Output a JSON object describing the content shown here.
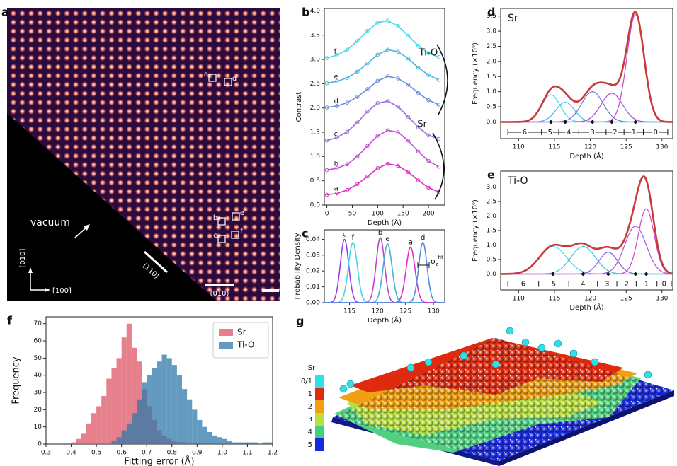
{
  "image_panel": {
    "panel": "a",
    "vacuum": "vacuum",
    "axis_y": "[010]",
    "axis_x": "[100]",
    "plane_diag": "(110)",
    "plane_horiz": "(010)",
    "site_labels": [
      "a",
      "b",
      "c",
      "d",
      "e",
      "f"
    ]
  },
  "chart_data": [
    {
      "type": "line",
      "panel": "b",
      "xlabel": "Depth (Å)",
      "ylabel": "Contrast",
      "x": [
        0,
        20,
        40,
        60,
        80,
        100,
        120,
        140,
        160,
        180,
        200,
        220
      ],
      "xlim": [
        -5,
        232
      ],
      "ylim": [
        0,
        4.05
      ],
      "xticks": [
        0,
        50,
        100,
        150,
        200
      ],
      "yticks": [
        {
          "value": 0,
          "label": "0.0"
        },
        0.5,
        {
          "value": 1,
          "label": "1.0"
        },
        1.5,
        {
          "value": 2,
          "label": "2.0"
        },
        2.5,
        {
          "value": 3,
          "label": "3.0"
        },
        3.5,
        {
          "value": 4,
          "label": "4.0"
        }
      ],
      "series": [
        {
          "name": "f",
          "color": "#3fdbe6",
          "values": [
            3.03,
            3.09,
            3.2,
            3.38,
            3.59,
            3.76,
            3.8,
            3.69,
            3.49,
            3.28,
            3.13,
            3.05
          ]
        },
        {
          "name": "e",
          "color": "#4ab4da",
          "values": [
            2.51,
            2.55,
            2.62,
            2.75,
            2.92,
            3.1,
            3.2,
            3.16,
            3.02,
            2.83,
            2.68,
            2.58
          ]
        },
        {
          "name": "d",
          "color": "#6a8ddb",
          "values": [
            2.01,
            2.04,
            2.11,
            2.23,
            2.39,
            2.56,
            2.65,
            2.61,
            2.48,
            2.31,
            2.16,
            2.07
          ]
        },
        {
          "name": "c",
          "color": "#9a6ed9",
          "values": [
            1.33,
            1.39,
            1.51,
            1.7,
            1.93,
            2.1,
            2.14,
            2.03,
            1.82,
            1.6,
            1.44,
            1.36
          ]
        },
        {
          "name": "b",
          "color": "#c04fd2",
          "values": [
            0.72,
            0.76,
            0.84,
            1.0,
            1.22,
            1.43,
            1.54,
            1.5,
            1.33,
            1.1,
            0.91,
            0.79
          ]
        },
        {
          "name": "a",
          "color": "#e22fc8",
          "values": [
            0.21,
            0.24,
            0.31,
            0.43,
            0.59,
            0.76,
            0.85,
            0.81,
            0.68,
            0.51,
            0.36,
            0.27
          ]
        }
      ],
      "annotations": [
        "Ti-O",
        "Sr"
      ]
    },
    {
      "type": "density",
      "panel": "c",
      "xlabel": "Depth (Å)",
      "ylabel": "Probability Density",
      "xlim": [
        110.5,
        132
      ],
      "ylim": [
        0,
        0.046
      ],
      "xticks": [
        115,
        120,
        125,
        130
      ],
      "yticks": [
        {
          "value": 0,
          "label": "0.00"
        },
        0.01,
        0.02,
        0.03,
        0.04
      ],
      "series": [
        {
          "name": "c",
          "color": "#9a40e0",
          "center": 114.1,
          "peak": 0.04,
          "sd": 0.75
        },
        {
          "name": "f",
          "color": "#3fd8e8",
          "center": 115.6,
          "peak": 0.038,
          "sd": 0.8
        },
        {
          "name": "b",
          "color": "#c040d0",
          "center": 120.5,
          "peak": 0.041,
          "sd": 0.75
        },
        {
          "name": "e",
          "color": "#40b0d8",
          "center": 121.8,
          "peak": 0.037,
          "sd": 0.8
        },
        {
          "name": "a",
          "color": "#d830c8",
          "center": 125.9,
          "peak": 0.035,
          "sd": 0.8
        },
        {
          "name": "d",
          "color": "#5090e0",
          "center": 128.1,
          "peak": 0.038,
          "sd": 0.75
        }
      ],
      "sigma_label": "σ",
      "sigma_sub": "z",
      "sigma_sup": "fit"
    },
    {
      "type": "decomposition",
      "panel": "d",
      "title": "Sr",
      "xlabel": "Depth (Å)",
      "ylabel": "Frequency (×10⁶)",
      "xlim": [
        107.5,
        131.5
      ],
      "ylim": [
        -0.55,
        3.75
      ],
      "xticks": [
        110,
        115,
        120,
        125,
        130
      ],
      "yticks": [
        {
          "value": 0,
          "label": "0.0"
        },
        0.5,
        {
          "value": 1,
          "label": "1.0"
        },
        1.5,
        {
          "value": 2,
          "label": "2.0"
        },
        2.5,
        {
          "value": 3,
          "label": "3.0"
        },
        3.5
      ],
      "total_color": "#c83a3a",
      "components": [
        {
          "color": "#40d8e0",
          "center": 114.5,
          "peak": 0.9,
          "sd": 1.3
        },
        {
          "color": "#40bce0",
          "center": 116.5,
          "peak": 0.65,
          "sd": 1.3
        },
        {
          "color": "#6a70d8",
          "center": 120.3,
          "peak": 1.0,
          "sd": 1.5
        },
        {
          "color": "#a050d8",
          "center": 123.0,
          "peak": 0.95,
          "sd": 1.5
        },
        {
          "color": "#d040d0",
          "center": 126.3,
          "peak": 3.55,
          "sd": 1.2
        }
      ],
      "layers": [
        "6",
        "5",
        "4",
        "3",
        "2",
        "1",
        "0"
      ],
      "layer_bounds": [
        108.5,
        113.2,
        115.6,
        118.4,
        122.2,
        124.7,
        127.4,
        130.8
      ]
    },
    {
      "type": "decomposition",
      "panel": "e",
      "title": "Ti-O",
      "xlabel": "Depth (Å)",
      "ylabel": "Frequency (×10⁶)",
      "xlim": [
        107.5,
        131.5
      ],
      "ylim": [
        -0.55,
        3.55
      ],
      "xticks": [
        110,
        115,
        120,
        125,
        130
      ],
      "yticks": [
        {
          "value": 0,
          "label": "0.0"
        },
        0.5,
        {
          "value": 1,
          "label": "1.0"
        },
        1.5,
        {
          "value": 2,
          "label": "2.0"
        },
        2.5,
        {
          "value": 3,
          "label": "3.0"
        }
      ],
      "total_color": "#c83a3a",
      "components": [
        {
          "color": "#40d8e0",
          "center": 114.8,
          "peak": 0.95,
          "sd": 1.9
        },
        {
          "color": "#40bce0",
          "center": 119.0,
          "peak": 0.95,
          "sd": 1.7
        },
        {
          "color": "#8060d8",
          "center": 122.5,
          "peak": 0.75,
          "sd": 1.3
        },
        {
          "color": "#b050d8",
          "center": 126.3,
          "peak": 1.65,
          "sd": 1.5
        },
        {
          "color": "#d040d0",
          "center": 127.8,
          "peak": 2.25,
          "sd": 1.1
        }
      ],
      "layers": [
        "6",
        "5",
        "4",
        "3",
        "2",
        "1",
        "0"
      ],
      "layer_bounds": [
        108.5,
        112.8,
        117.0,
        121.0,
        123.7,
        126.4,
        129.3,
        131.3
      ]
    },
    {
      "type": "histogram",
      "panel": "f",
      "xlabel": "Fitting error (Å)",
      "ylabel": "Frequency",
      "xlim": [
        0.3,
        1.2
      ],
      "ylim": [
        0,
        74
      ],
      "xticks": [
        0.3,
        0.4,
        0.5,
        0.6,
        0.7,
        0.8,
        0.9,
        {
          "value": 1,
          "label": "1.0"
        },
        1.1,
        1.2
      ],
      "yticks": [
        0,
        10,
        20,
        30,
        40,
        50,
        60,
        70
      ],
      "legend": "upper right",
      "series": [
        {
          "name": "Sr",
          "color": "#dd5665",
          "bins": [
            0.4,
            0.42,
            0.44,
            0.46,
            0.48,
            0.5,
            0.52,
            0.54,
            0.56,
            0.58,
            0.6,
            0.62,
            0.64,
            0.66,
            0.68,
            0.7,
            0.72,
            0.74,
            0.76,
            0.78,
            0.8,
            0.82,
            0.84,
            0.86
          ],
          "values": [
            1,
            3,
            6,
            12,
            18,
            22,
            28,
            38,
            44,
            50,
            62,
            70,
            56,
            48,
            32,
            22,
            14,
            8,
            5,
            3,
            2,
            1,
            1
          ]
        },
        {
          "name": "Ti-O",
          "color": "#2f78aa",
          "bins": [
            0.56,
            0.58,
            0.6,
            0.62,
            0.64,
            0.66,
            0.68,
            0.7,
            0.72,
            0.74,
            0.76,
            0.78,
            0.8,
            0.82,
            0.84,
            0.86,
            0.88,
            0.9,
            0.92,
            0.94,
            0.96,
            0.98,
            1.0,
            1.02,
            1.04,
            1.06,
            1.08,
            1.1,
            1.12,
            1.14,
            1.16,
            1.18,
            1.2
          ],
          "values": [
            2,
            4,
            8,
            12,
            18,
            26,
            36,
            40,
            44,
            48,
            52,
            50,
            46,
            40,
            32,
            26,
            20,
            14,
            10,
            7,
            5,
            4,
            3,
            2,
            1,
            1,
            1,
            1,
            1,
            0,
            1,
            1
          ]
        }
      ]
    }
  ],
  "model_panel": {
    "panel": "g",
    "colorbar_title": "Sr",
    "levels": [
      "0/1",
      "1",
      "2",
      "3",
      "4",
      "5"
    ],
    "colors": [
      "#30e0e8",
      "#e02a10",
      "#f0a010",
      "#b8e040",
      "#40d080",
      "#1828e0"
    ]
  }
}
